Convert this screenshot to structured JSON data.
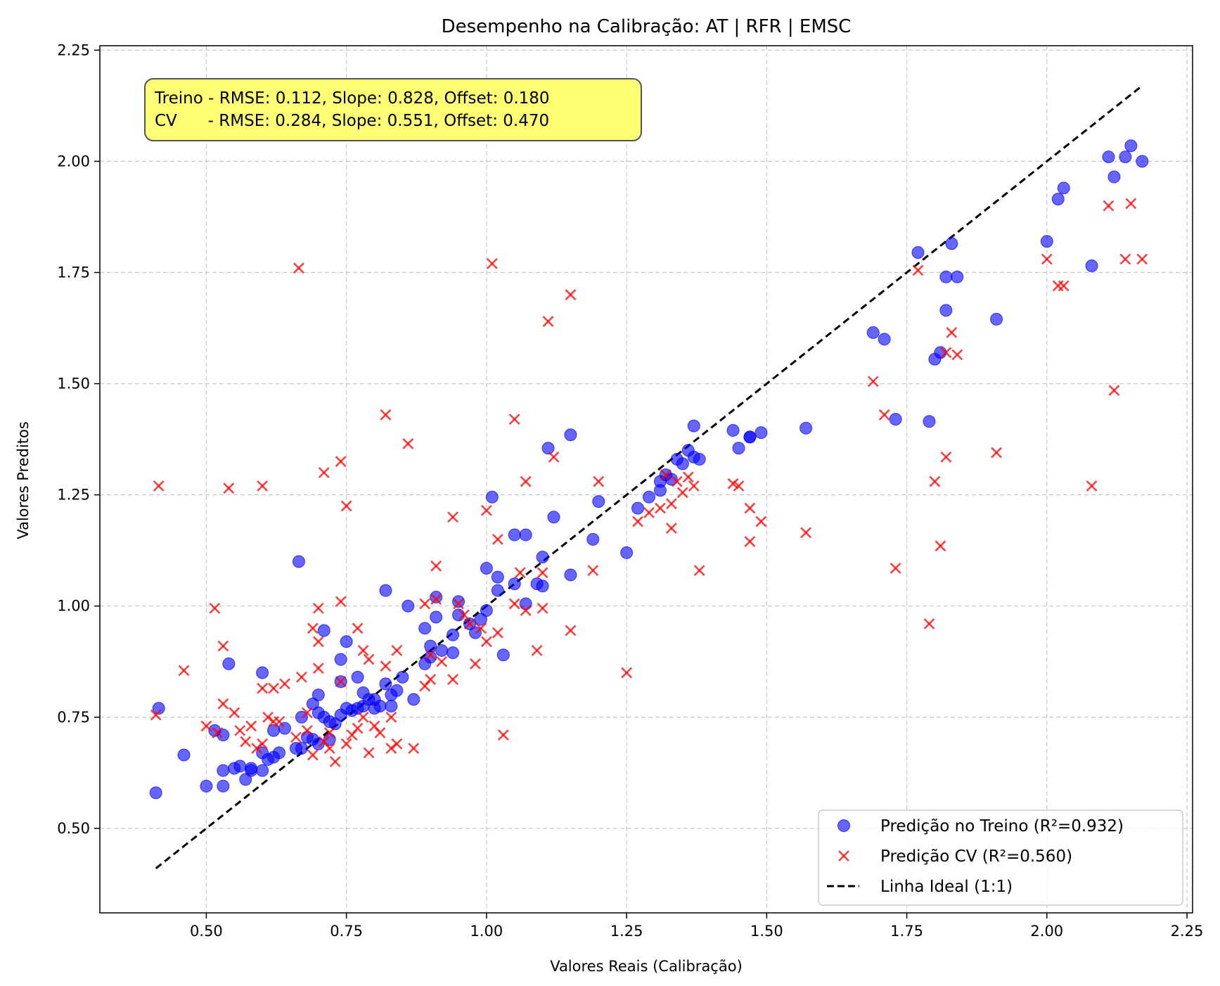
{
  "chart_data": {
    "type": "scatter",
    "title": "Desempenho na Calibração: AT | RFR | EMSC",
    "xlabel": "Valores Reais (Calibração)",
    "ylabel": "Valores Preditos",
    "xlim": [
      0.31,
      2.26
    ],
    "ylim": [
      0.31,
      2.26
    ],
    "xticks": [
      0.5,
      0.75,
      1.0,
      1.25,
      1.5,
      1.75,
      2.0,
      2.25
    ],
    "yticks": [
      0.5,
      0.75,
      1.0,
      1.25,
      1.5,
      1.75,
      2.0,
      2.25
    ],
    "xtick_labels": [
      "0.50",
      "0.75",
      "1.00",
      "1.25",
      "1.50",
      "1.75",
      "2.00",
      "2.25"
    ],
    "ytick_labels": [
      "0.50",
      "0.75",
      "1.00",
      "1.25",
      "1.50",
      "1.75",
      "2.00",
      "2.25"
    ],
    "grid": true,
    "legend_position": "lower-right",
    "annotation_lines": [
      "Treino - RMSE: 0.112, Slope: 0.828, Offset: 0.180",
      "CV      - RMSE: 0.284, Slope: 0.551, Offset: 0.470"
    ],
    "annotation_color": "#ffff66",
    "series": [
      {
        "name": "Predição no Treino (R²=0.932)",
        "marker": "circle",
        "color": "#0000ff",
        "points": [
          [
            0.41,
            0.58
          ],
          [
            0.415,
            0.77
          ],
          [
            0.46,
            0.665
          ],
          [
            0.5,
            0.595
          ],
          [
            0.515,
            0.72
          ],
          [
            0.53,
            0.63
          ],
          [
            0.53,
            0.595
          ],
          [
            0.53,
            0.71
          ],
          [
            0.54,
            0.87
          ],
          [
            0.55,
            0.635
          ],
          [
            0.56,
            0.64
          ],
          [
            0.57,
            0.61
          ],
          [
            0.58,
            0.63
          ],
          [
            0.58,
            0.635
          ],
          [
            0.6,
            0.67
          ],
          [
            0.6,
            0.63
          ],
          [
            0.6,
            0.85
          ],
          [
            0.61,
            0.655
          ],
          [
            0.62,
            0.72
          ],
          [
            0.62,
            0.66
          ],
          [
            0.63,
            0.67
          ],
          [
            0.64,
            0.725
          ],
          [
            0.66,
            0.68
          ],
          [
            0.665,
            1.1
          ],
          [
            0.67,
            0.75
          ],
          [
            0.67,
            0.68
          ],
          [
            0.68,
            0.705
          ],
          [
            0.69,
            0.78
          ],
          [
            0.69,
            0.7
          ],
          [
            0.7,
            0.8
          ],
          [
            0.7,
            0.76
          ],
          [
            0.7,
            0.69
          ],
          [
            0.71,
            0.945
          ],
          [
            0.71,
            0.75
          ],
          [
            0.72,
            0.74
          ],
          [
            0.72,
            0.7
          ],
          [
            0.73,
            0.735
          ],
          [
            0.74,
            0.88
          ],
          [
            0.74,
            0.83
          ],
          [
            0.74,
            0.755
          ],
          [
            0.75,
            0.92
          ],
          [
            0.75,
            0.77
          ],
          [
            0.76,
            0.765
          ],
          [
            0.77,
            0.77
          ],
          [
            0.77,
            0.84
          ],
          [
            0.78,
            0.805
          ],
          [
            0.78,
            0.775
          ],
          [
            0.79,
            0.79
          ],
          [
            0.8,
            0.79
          ],
          [
            0.8,
            0.77
          ],
          [
            0.81,
            0.775
          ],
          [
            0.82,
            0.825
          ],
          [
            0.82,
            1.035
          ],
          [
            0.83,
            0.8
          ],
          [
            0.83,
            0.775
          ],
          [
            0.84,
            0.81
          ],
          [
            0.85,
            0.84
          ],
          [
            0.86,
            1.0
          ],
          [
            0.87,
            0.79
          ],
          [
            0.89,
            0.95
          ],
          [
            0.89,
            0.87
          ],
          [
            0.9,
            0.91
          ],
          [
            0.9,
            0.885
          ],
          [
            0.91,
            0.975
          ],
          [
            0.91,
            1.02
          ],
          [
            0.92,
            0.9
          ],
          [
            0.94,
            0.935
          ],
          [
            0.94,
            0.895
          ],
          [
            0.95,
            1.01
          ],
          [
            0.95,
            0.98
          ],
          [
            0.97,
            0.96
          ],
          [
            0.98,
            0.94
          ],
          [
            0.99,
            0.97
          ],
          [
            1.0,
            0.99
          ],
          [
            1.0,
            1.085
          ],
          [
            1.01,
            1.245
          ],
          [
            1.02,
            1.065
          ],
          [
            1.02,
            1.035
          ],
          [
            1.03,
            0.89
          ],
          [
            1.05,
            1.05
          ],
          [
            1.05,
            1.16
          ],
          [
            1.07,
            1.16
          ],
          [
            1.07,
            1.005
          ],
          [
            1.09,
            1.05
          ],
          [
            1.1,
            1.11
          ],
          [
            1.1,
            1.045
          ],
          [
            1.11,
            1.355
          ],
          [
            1.12,
            1.2
          ],
          [
            1.15,
            1.385
          ],
          [
            1.15,
            1.07
          ],
          [
            1.19,
            1.15
          ],
          [
            1.2,
            1.235
          ],
          [
            1.25,
            1.12
          ],
          [
            1.27,
            1.22
          ],
          [
            1.29,
            1.245
          ],
          [
            1.31,
            1.26
          ],
          [
            1.31,
            1.28
          ],
          [
            1.32,
            1.295
          ],
          [
            1.33,
            1.285
          ],
          [
            1.34,
            1.33
          ],
          [
            1.35,
            1.32
          ],
          [
            1.36,
            1.35
          ],
          [
            1.37,
            1.335
          ],
          [
            1.37,
            1.405
          ],
          [
            1.38,
            1.33
          ],
          [
            1.44,
            1.395
          ],
          [
            1.45,
            1.355
          ],
          [
            1.47,
            1.38
          ],
          [
            1.47,
            1.38
          ],
          [
            1.49,
            1.39
          ],
          [
            1.57,
            1.4
          ],
          [
            1.69,
            1.615
          ],
          [
            1.71,
            1.6
          ],
          [
            1.73,
            1.42
          ],
          [
            1.77,
            1.795
          ],
          [
            1.79,
            1.415
          ],
          [
            1.8,
            1.555
          ],
          [
            1.81,
            1.57
          ],
          [
            1.82,
            1.665
          ],
          [
            1.82,
            1.74
          ],
          [
            1.83,
            1.815
          ],
          [
            1.84,
            1.74
          ],
          [
            1.91,
            1.645
          ],
          [
            2.0,
            1.82
          ],
          [
            2.02,
            1.915
          ],
          [
            2.03,
            1.94
          ],
          [
            2.08,
            1.765
          ],
          [
            2.11,
            2.01
          ],
          [
            2.12,
            1.965
          ],
          [
            2.14,
            2.01
          ],
          [
            2.15,
            2.035
          ],
          [
            2.17,
            2.0
          ]
        ]
      },
      {
        "name": "Predição CV (R²=0.560)",
        "marker": "x",
        "color": "#ff0000",
        "points": [
          [
            0.41,
            0.755
          ],
          [
            0.415,
            1.27
          ],
          [
            0.46,
            0.855
          ],
          [
            0.5,
            0.73
          ],
          [
            0.515,
            0.995
          ],
          [
            0.52,
            0.715
          ],
          [
            0.53,
            0.78
          ],
          [
            0.53,
            0.91
          ],
          [
            0.54,
            1.265
          ],
          [
            0.55,
            0.76
          ],
          [
            0.56,
            0.72
          ],
          [
            0.57,
            0.695
          ],
          [
            0.58,
            0.73
          ],
          [
            0.59,
            0.68
          ],
          [
            0.6,
            0.815
          ],
          [
            0.6,
            0.69
          ],
          [
            0.6,
            1.27
          ],
          [
            0.61,
            0.75
          ],
          [
            0.62,
            0.815
          ],
          [
            0.62,
            0.74
          ],
          [
            0.63,
            0.74
          ],
          [
            0.64,
            0.825
          ],
          [
            0.66,
            0.705
          ],
          [
            0.665,
            1.76
          ],
          [
            0.67,
            0.84
          ],
          [
            0.68,
            0.72
          ],
          [
            0.68,
            0.76
          ],
          [
            0.69,
            0.665
          ],
          [
            0.69,
            0.95
          ],
          [
            0.7,
            0.995
          ],
          [
            0.7,
            0.86
          ],
          [
            0.7,
            0.92
          ],
          [
            0.71,
            1.3
          ],
          [
            0.71,
            0.695
          ],
          [
            0.72,
            0.68
          ],
          [
            0.72,
            0.715
          ],
          [
            0.73,
            0.65
          ],
          [
            0.74,
            1.325
          ],
          [
            0.74,
            1.01
          ],
          [
            0.74,
            0.83
          ],
          [
            0.75,
            1.225
          ],
          [
            0.75,
            0.69
          ],
          [
            0.76,
            0.71
          ],
          [
            0.77,
            0.725
          ],
          [
            0.77,
            0.95
          ],
          [
            0.78,
            0.9
          ],
          [
            0.78,
            0.75
          ],
          [
            0.79,
            0.88
          ],
          [
            0.79,
            0.67
          ],
          [
            0.8,
            0.73
          ],
          [
            0.81,
            0.715
          ],
          [
            0.82,
            0.865
          ],
          [
            0.82,
            1.43
          ],
          [
            0.83,
            0.68
          ],
          [
            0.83,
            0.75
          ],
          [
            0.84,
            0.69
          ],
          [
            0.84,
            0.9
          ],
          [
            0.86,
            1.365
          ],
          [
            0.87,
            0.68
          ],
          [
            0.89,
            0.82
          ],
          [
            0.89,
            1.005
          ],
          [
            0.9,
            0.835
          ],
          [
            0.9,
            0.89
          ],
          [
            0.91,
            1.09
          ],
          [
            0.91,
            1.015
          ],
          [
            0.92,
            0.875
          ],
          [
            0.94,
            0.835
          ],
          [
            0.94,
            1.2
          ],
          [
            0.95,
            1.005
          ],
          [
            0.96,
            0.98
          ],
          [
            0.97,
            0.96
          ],
          [
            0.98,
            0.87
          ],
          [
            0.99,
            0.95
          ],
          [
            1.0,
            0.92
          ],
          [
            1.0,
            1.215
          ],
          [
            1.01,
            1.77
          ],
          [
            1.02,
            1.15
          ],
          [
            1.02,
            0.94
          ],
          [
            1.03,
            0.71
          ],
          [
            1.05,
            1.005
          ],
          [
            1.05,
            1.42
          ],
          [
            1.06,
            1.075
          ],
          [
            1.07,
            1.28
          ],
          [
            1.07,
            0.99
          ],
          [
            1.09,
            0.9
          ],
          [
            1.1,
            0.995
          ],
          [
            1.1,
            1.075
          ],
          [
            1.11,
            1.64
          ],
          [
            1.12,
            1.335
          ],
          [
            1.15,
            1.7
          ],
          [
            1.15,
            0.945
          ],
          [
            1.19,
            1.08
          ],
          [
            1.2,
            1.28
          ],
          [
            1.25,
            0.85
          ],
          [
            1.27,
            1.19
          ],
          [
            1.29,
            1.21
          ],
          [
            1.31,
            1.22
          ],
          [
            1.32,
            1.295
          ],
          [
            1.33,
            1.175
          ],
          [
            1.33,
            1.23
          ],
          [
            1.34,
            1.28
          ],
          [
            1.35,
            1.255
          ],
          [
            1.36,
            1.29
          ],
          [
            1.37,
            1.27
          ],
          [
            1.38,
            1.08
          ],
          [
            1.44,
            1.275
          ],
          [
            1.45,
            1.27
          ],
          [
            1.47,
            1.22
          ],
          [
            1.47,
            1.145
          ],
          [
            1.49,
            1.19
          ],
          [
            1.57,
            1.165
          ],
          [
            1.69,
            1.505
          ],
          [
            1.71,
            1.43
          ],
          [
            1.73,
            1.085
          ],
          [
            1.77,
            1.755
          ],
          [
            1.79,
            0.96
          ],
          [
            1.8,
            1.28
          ],
          [
            1.81,
            1.135
          ],
          [
            1.82,
            1.335
          ],
          [
            1.82,
            1.57
          ],
          [
            1.83,
            1.615
          ],
          [
            1.84,
            1.565
          ],
          [
            1.91,
            1.345
          ],
          [
            2.0,
            1.78
          ],
          [
            2.02,
            1.72
          ],
          [
            2.03,
            1.72
          ],
          [
            2.08,
            1.27
          ],
          [
            2.11,
            1.9
          ],
          [
            2.12,
            1.485
          ],
          [
            2.14,
            1.78
          ],
          [
            2.15,
            1.905
          ],
          [
            2.17,
            1.78
          ]
        ]
      },
      {
        "name": "Linha Ideal (1:1)",
        "marker": "dashed-line",
        "color": "#000000",
        "points": [
          [
            0.41,
            0.41
          ],
          [
            2.17,
            2.17
          ]
        ]
      }
    ]
  }
}
